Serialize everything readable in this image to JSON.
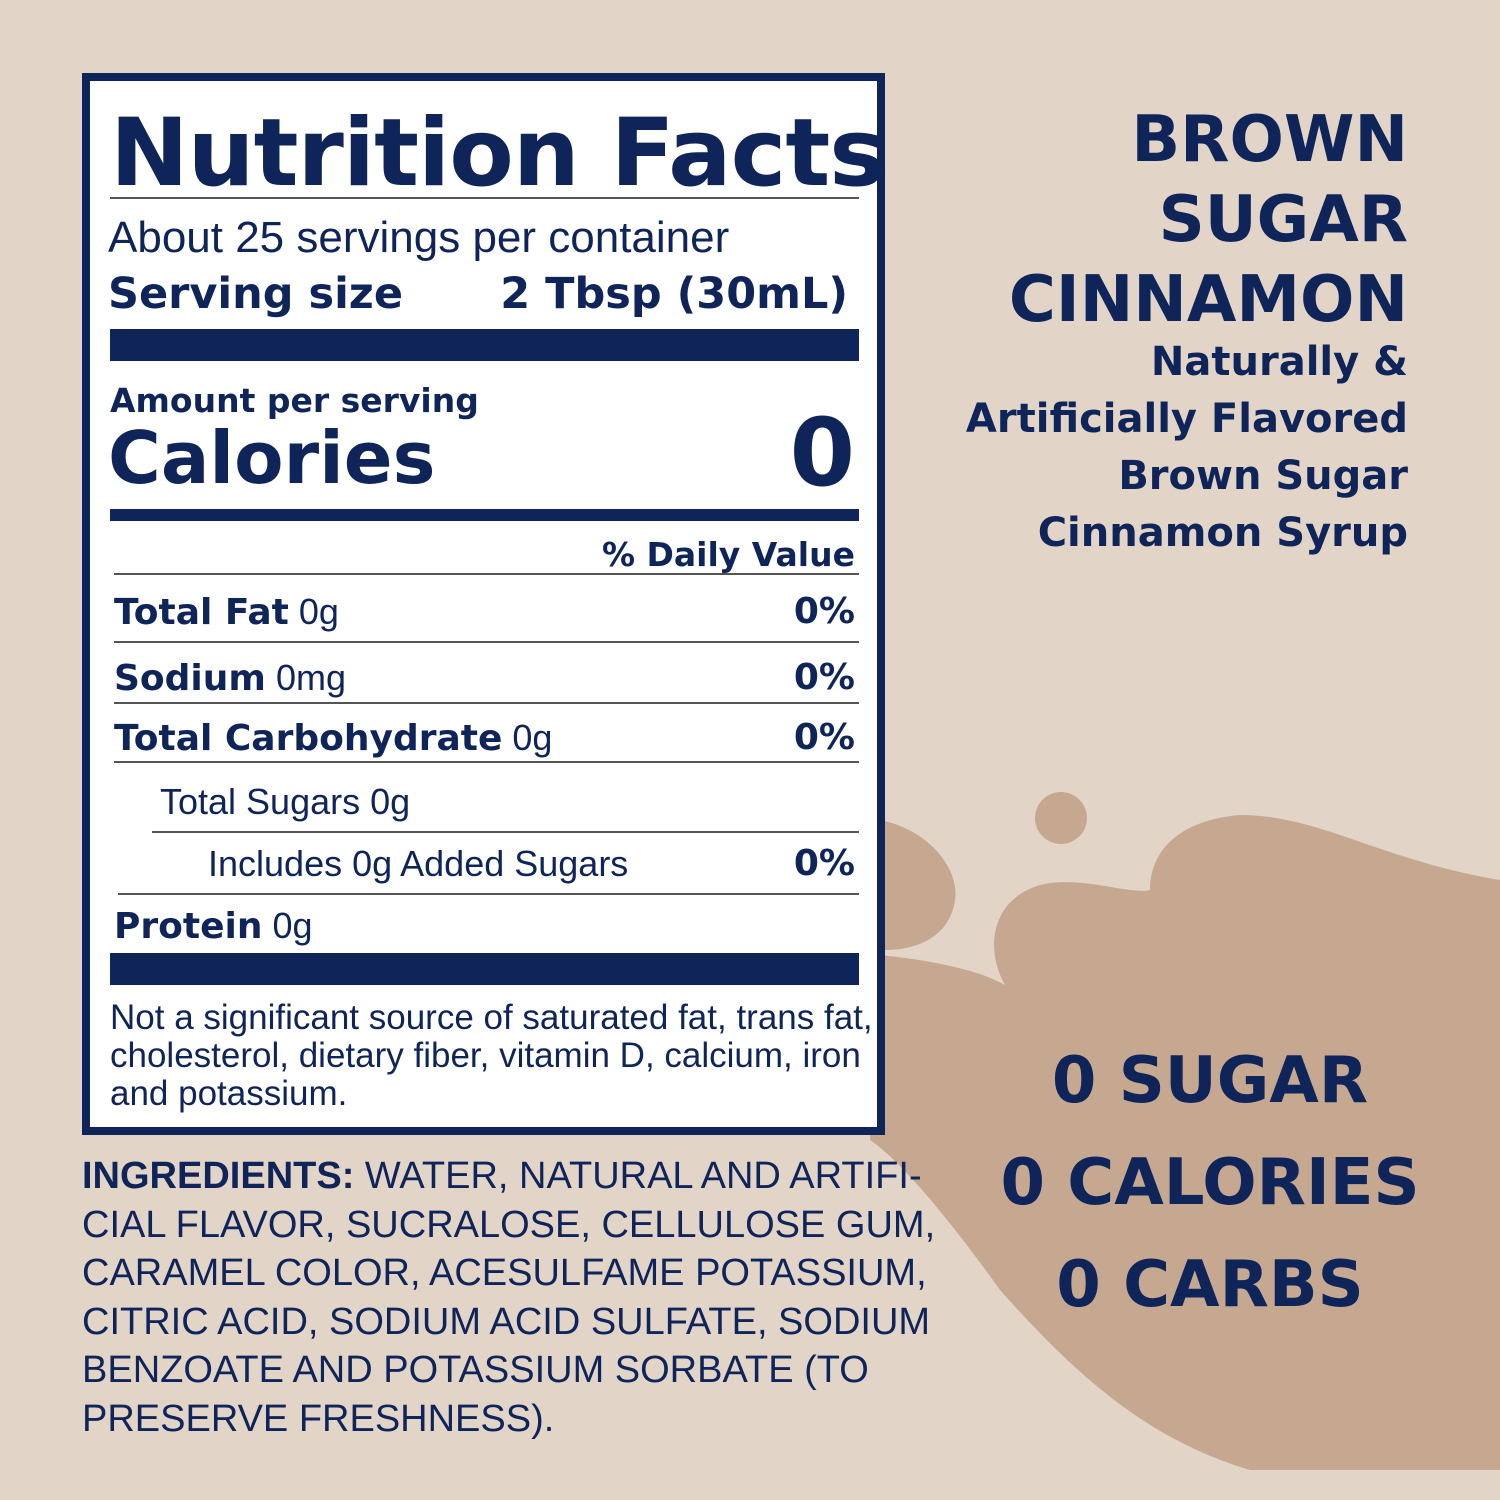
{
  "colors": {
    "background": "#e2d5c8",
    "accent_blob": "#c6a891",
    "navy": "#0f2459"
  },
  "nutrition": {
    "title": "Nutrition Facts",
    "servings": "About 25 servings per container",
    "serving_size_label": "Serving size",
    "serving_size_value": "2 Tbsp (30mL)",
    "amount_per_serving": "Amount per serving",
    "calories_label": "Calories",
    "calories_value": "0",
    "daily_value_header": "% Daily Value",
    "rows": [
      {
        "name": "Total Fat",
        "amount": "0g",
        "dv": "0%"
      },
      {
        "name": "Sodium",
        "amount": "0mg",
        "dv": "0%"
      },
      {
        "name": "Total Carbohydrate",
        "amount": "0g",
        "dv": "0%"
      },
      {
        "name": "",
        "amount": "Total Sugars 0g",
        "dv": ""
      },
      {
        "name": "",
        "amount": "Includes 0g Added Sugars",
        "dv": "0%"
      },
      {
        "name": "Protein",
        "amount": "0g",
        "dv": ""
      }
    ],
    "footnote": "Not a significant source of saturated fat, trans fat, cholesterol, dietary fiber, vitamin D, calcium, iron and potassium."
  },
  "ingredients": {
    "label": "INGREDIENTS:",
    "text": " WATER, NATURAL AND ARTIFI-CIAL FLAVOR, SUCRALOSE, CELLULOSE GUM, CARAMEL COLOR, ACESULFAME POTASSIUM, CITRIC ACID, SODIUM ACID SULFATE, SODIUM BENZOATE AND POTASSIUM SORBATE (TO PRESERVE FRESHNESS)."
  },
  "product": {
    "name_lines": [
      "BROWN",
      "SUGAR",
      "CINNAMON"
    ],
    "description_lines": [
      "Naturally &",
      "Artificially Flavored",
      "Brown Sugar",
      "Cinnamon Syrup"
    ]
  },
  "claims": [
    "0 SUGAR",
    "0 CALORIES",
    "0 CARBS"
  ]
}
